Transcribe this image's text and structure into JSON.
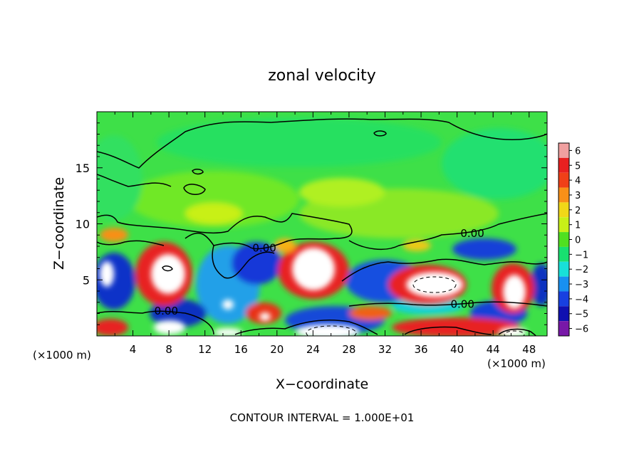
{
  "chart_data": {
    "type": "heatmap",
    "title": "zonal velocity",
    "xlabel": "X−coordinate",
    "ylabel": "Z−coordinate",
    "x_unit_left": "(×1000 m)",
    "x_unit_right": "(×1000 m)",
    "footer": "CONTOUR INTERVAL = 1.000E+01",
    "xlim": [
      0,
      50
    ],
    "ylim": [
      0,
      20
    ],
    "x_ticks": [
      4,
      8,
      12,
      16,
      20,
      24,
      28,
      32,
      36,
      40,
      44,
      48
    ],
    "y_ticks": [
      5,
      10,
      15
    ],
    "colorbar": {
      "min": -6,
      "max": 6,
      "labels": [
        "6",
        "5",
        "4",
        "3",
        "2",
        "1",
        "0",
        "−1",
        "−2",
        "−3",
        "−4",
        "−5",
        "−6"
      ],
      "colors": [
        "#f0a0a0",
        "#e82020",
        "#f04018",
        "#f89018",
        "#f0d818",
        "#c8f018",
        "#50e020",
        "#18e070",
        "#18e0d8",
        "#1890f0",
        "#1840e0",
        "#1010b0",
        "#7818a8"
      ],
      "over_color": "#ffffff"
    },
    "contour_labels": [
      {
        "text": "0.00",
        "x": 41.7,
        "z": 9.2
      },
      {
        "text": "0.00",
        "x": 18.6,
        "z": 7.9
      },
      {
        "text": "0.00",
        "x": 7.7,
        "z": 2.3
      },
      {
        "text": "0.00",
        "x": 40.6,
        "z": 2.9
      }
    ]
  }
}
